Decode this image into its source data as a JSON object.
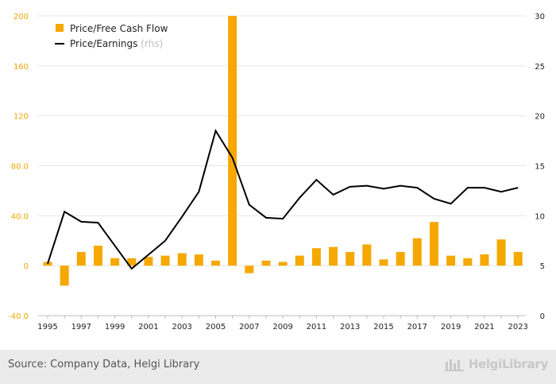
{
  "chart_data": {
    "type": "bar+line",
    "x": [
      1995,
      1996,
      1997,
      1998,
      1999,
      2000,
      2001,
      2002,
      2003,
      2004,
      2005,
      2006,
      2007,
      2008,
      2009,
      2010,
      2011,
      2012,
      2013,
      2014,
      2015,
      2016,
      2017,
      2018,
      2019,
      2020,
      2021,
      2022,
      2023
    ],
    "x_tick_labels": [
      "1995",
      "1997",
      "1999",
      "2001",
      "2003",
      "2005",
      "2007",
      "2009",
      "2011",
      "2013",
      "2015",
      "2017",
      "2019",
      "2021",
      "2023"
    ],
    "series": [
      {
        "name": "Price/Free Cash Flow",
        "type": "bar",
        "axis": "left",
        "color": "#f5a800",
        "values": [
          3,
          -16,
          11,
          16,
          6,
          6,
          7,
          8,
          10,
          9,
          4,
          200,
          -6,
          4,
          3,
          8,
          14,
          15,
          11,
          17,
          5,
          11,
          22,
          35,
          8,
          6,
          9,
          21,
          11
        ]
      },
      {
        "name": "Price/Earnings",
        "name_suffix": "(rhs)",
        "type": "line",
        "axis": "right",
        "color": "#000000",
        "values": [
          5.2,
          10.4,
          9.4,
          9.3,
          7.0,
          4.7,
          6.1,
          7.5,
          9.9,
          12.4,
          18.5,
          15.8,
          11.1,
          9.8,
          9.7,
          11.8,
          13.6,
          12.1,
          12.9,
          13.0,
          12.7,
          13.0,
          12.8,
          11.7,
          11.2,
          12.8,
          12.8,
          12.4,
          12.8
        ]
      }
    ],
    "y_left": {
      "ylim": [
        -40,
        200
      ],
      "ticks": [
        "-40.0",
        "0",
        "40.0",
        "80.0",
        "120",
        "160",
        "200"
      ],
      "tick_values": [
        -40,
        0,
        40,
        80,
        120,
        160,
        200
      ]
    },
    "y_right": {
      "ylim": [
        0,
        30
      ],
      "ticks": [
        "0",
        "5",
        "10",
        "15",
        "20",
        "25",
        "30"
      ],
      "tick_values": [
        0,
        5,
        10,
        15,
        20,
        25,
        30
      ]
    },
    "legend_position": "top-left",
    "grid": true
  },
  "footer": {
    "source": "Source: Company Data, Helgi Library",
    "logo_text": "HelgiLibrary"
  },
  "colors": {
    "bar": "#f5a800",
    "line": "#000000",
    "grid": "#e6e6e6",
    "left_axis_text": "#f0a500"
  }
}
